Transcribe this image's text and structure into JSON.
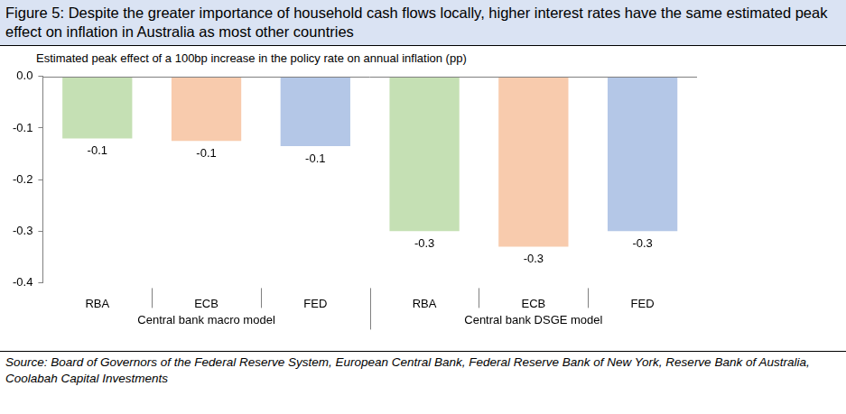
{
  "chart_data": {
    "type": "bar",
    "title": "Figure 5: Despite the greater importance of household cash flows locally, higher interest rates have the same estimated peak effect on inflation in Australia as most other countries",
    "subtitle": "Estimated peak effect of a 100bp increase in the policy rate on annual inflation (pp)",
    "source": "Source:  Board of Governors of the Federal Reserve System, European Central Bank, Federal Reserve Bank of New York, Reserve Bank of Australia, Coolabah Capital Investments",
    "categories": [
      "RBA",
      "ECB",
      "FED",
      "RBA",
      "ECB",
      "FED"
    ],
    "groups": [
      {
        "name": "Central bank macro model",
        "categories": [
          "RBA",
          "ECB",
          "FED"
        ]
      },
      {
        "name": "Central bank DSGE model",
        "categories": [
          "RBA",
          "ECB",
          "FED"
        ]
      }
    ],
    "values": [
      -0.12,
      -0.125,
      -0.135,
      -0.3,
      -0.33,
      -0.3
    ],
    "value_labels": [
      "-0.1",
      "-0.1",
      "-0.1",
      "-0.3",
      "-0.3",
      "-0.3"
    ],
    "colors": [
      "#c5e0b4",
      "#f8cbad",
      "#b4c7e7",
      "#c5e0b4",
      "#f8cbad",
      "#b4c7e7"
    ],
    "ylim": [
      -0.4,
      0
    ],
    "yticks": [
      {
        "value": 0,
        "label": "0.0"
      },
      -0.1,
      -0.2,
      -0.3,
      -0.4
    ],
    "grid": false,
    "data_labels": true
  }
}
